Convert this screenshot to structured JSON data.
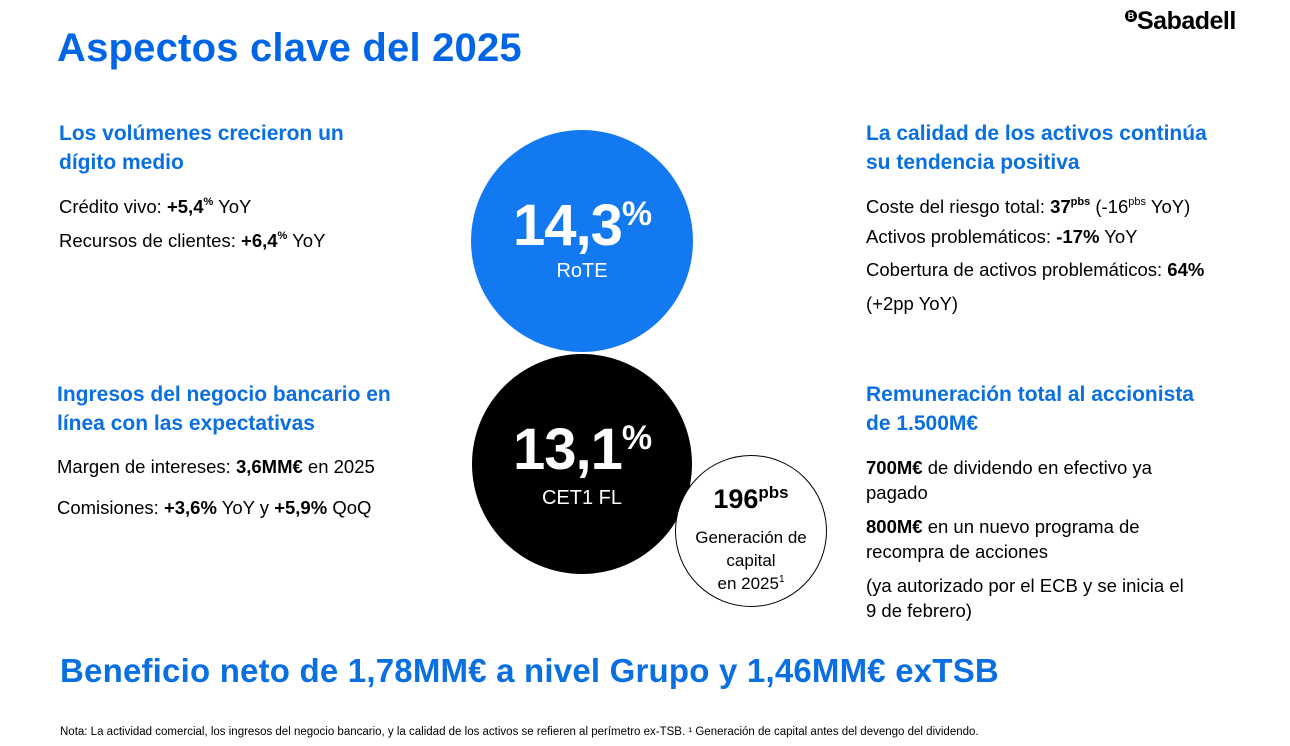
{
  "header": {
    "title": "Aspectos clave del 2025",
    "logo_mark": "B",
    "logo_text": "Sabadell"
  },
  "volumes": {
    "heading_line1": "Los volúmenes crecieron un",
    "heading_line2": "dígito medio",
    "credito_label": "Crédito vivo: ",
    "credito_value": "+5,4",
    "credito_sup": "%",
    "credito_suffix": " YoY",
    "recursos_label": "Recursos de clientes: ",
    "recursos_value": "+6,4",
    "recursos_sup": "%",
    "recursos_suffix": " YoY"
  },
  "income": {
    "heading_line1": "Ingresos del negocio bancario en",
    "heading_line2": "línea con las expectativas",
    "margen_label": "Margen de intereses: ",
    "margen_value": "3,6MM€",
    "margen_suffix": " en 2025",
    "comisiones_label": "Comisiones: ",
    "comisiones_yoy": "+3,6%",
    "comisiones_mid": " YoY y ",
    "comisiones_qoq": "+5,9%",
    "comisiones_suffix": " QoQ"
  },
  "rote": {
    "value": "14,3",
    "sup": "%",
    "label": "RoTE"
  },
  "cet1": {
    "value": "13,1",
    "sup": "%",
    "label": "CET1 FL"
  },
  "capital": {
    "value": "196",
    "sup": "pbs",
    "line1": "Generación de",
    "line2": "capital",
    "line3": "en 2025",
    "footnote": "1"
  },
  "assets": {
    "heading_line1": "La calidad de los activos continúa",
    "heading_line2": "su tendencia positiva",
    "coste_label": "Coste del riesgo total: ",
    "coste_value": "37",
    "coste_sup": "pbs",
    "coste_paren_open": " (-16",
    "coste_paren_sup": "pbs",
    "coste_paren_close": " YoY)",
    "problematicos_label": "Activos problemáticos: ",
    "problematicos_value": "-17%",
    "problematicos_suffix": " YoY",
    "cobertura_label": "Cobertura de activos problemáticos: ",
    "cobertura_value": "64%",
    "cobertura_line2": "(+2pp YoY)"
  },
  "shareholder": {
    "heading_line1": "Remuneración total al accionista",
    "heading_line2": "de 1.500M€",
    "dividend_value": "700M€",
    "dividend_text_line1": " de dividendo en efectivo ya",
    "dividend_text_line2": "pagado",
    "buyback_value": "800M€",
    "buyback_text_line1": " en un nuevo programa de",
    "buyback_text_line2": "recompra de acciones",
    "authorized_line1": "(ya autorizado por el ECB y se inicia el",
    "authorized_line2": "9 de febrero)"
  },
  "headline": "Beneficio neto de 1,78MM€ a nivel Grupo y 1,46MM€ exTSB",
  "note": "Nota: La actividad comercial, los ingresos del negocio bancario, y la calidad de los activos se refieren al perímetro ex-TSB. ¹ Generación de capital antes del devengo del dividendo."
}
